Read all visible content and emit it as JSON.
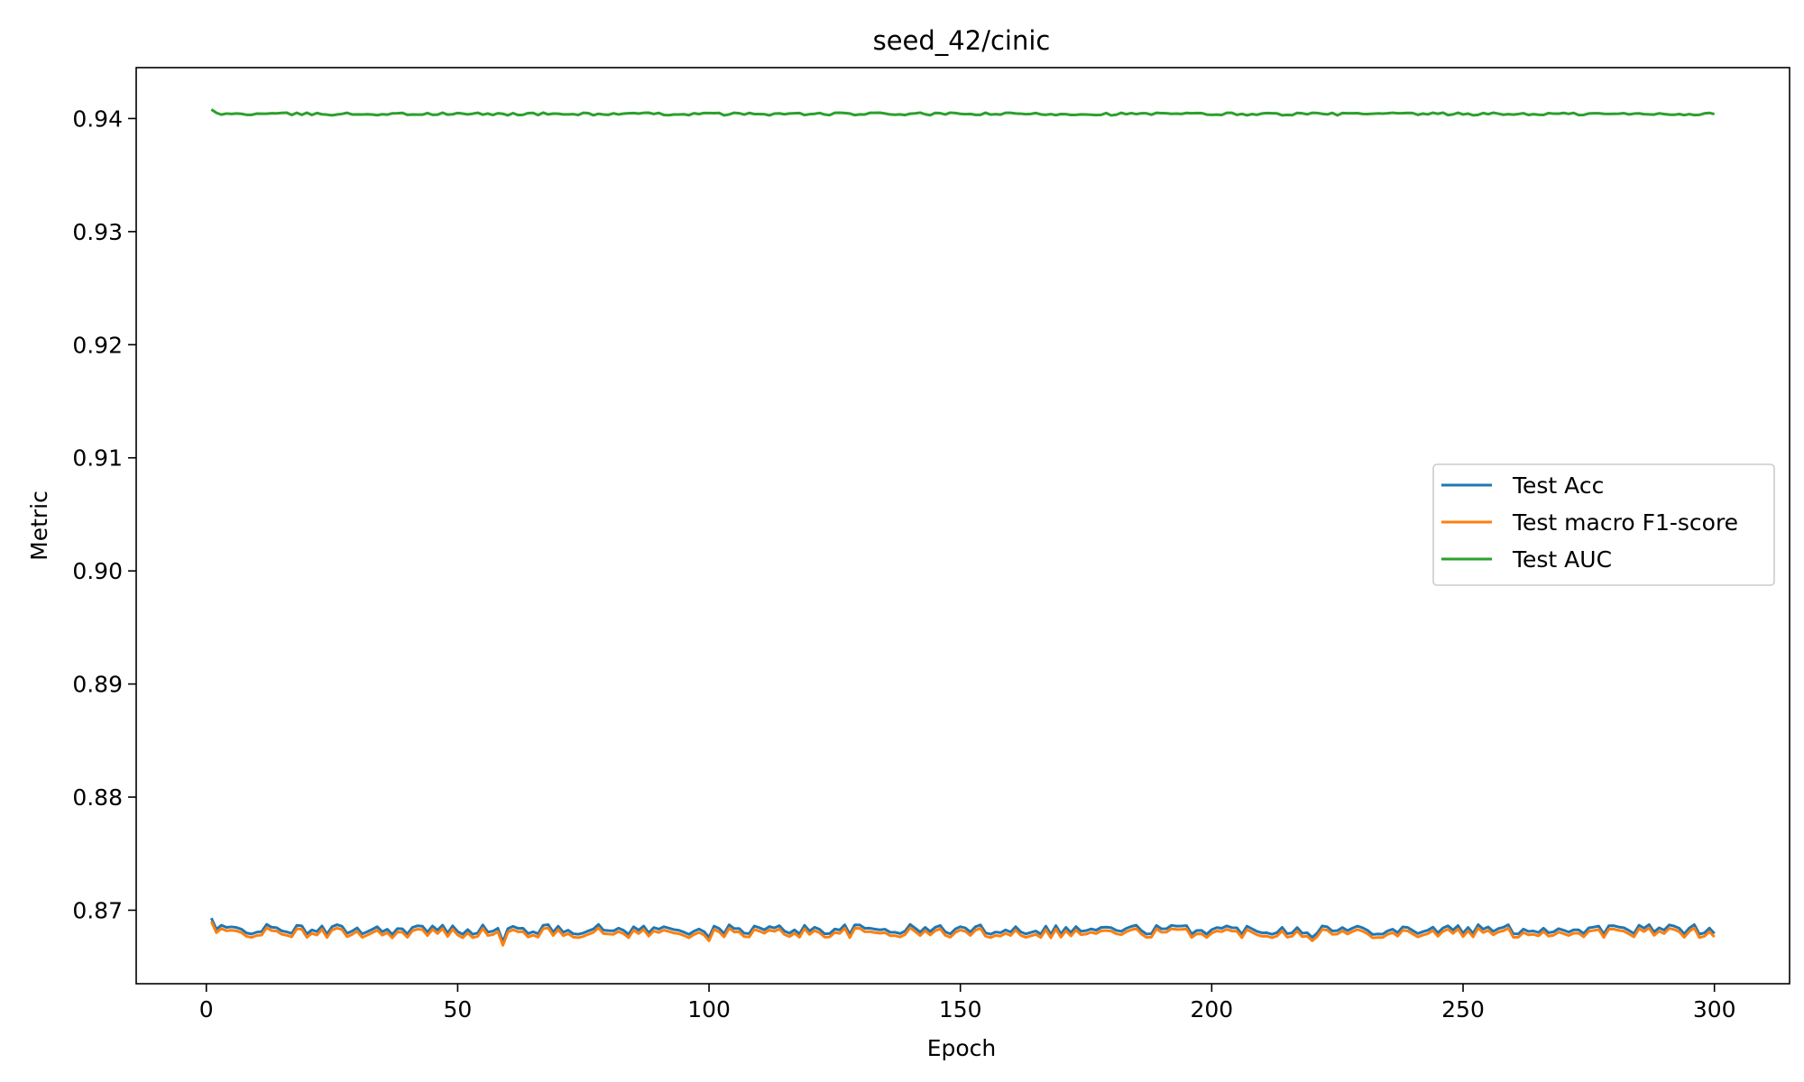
{
  "chart_data": {
    "type": "line",
    "title": "seed_42/cinic",
    "xlabel": "Epoch",
    "ylabel": "Metric",
    "xlim": [
      -13.95,
      314.95
    ],
    "ylim": [
      0.8635,
      0.9445
    ],
    "xticks": [
      0,
      50,
      100,
      150,
      200,
      250,
      300
    ],
    "yticks": [
      0.87,
      0.88,
      0.89,
      0.9,
      0.91,
      0.92,
      0.93,
      0.94
    ],
    "ytick_labels": [
      "0.87",
      "0.88",
      "0.89",
      "0.90",
      "0.91",
      "0.92",
      "0.93",
      "0.94"
    ],
    "grid": false,
    "legend_position": "center-right",
    "epochs": {
      "start": 1,
      "end": 300
    },
    "series": [
      {
        "name": "Test Acc",
        "color": "#1f77b4",
        "base": 0.8683,
        "first": 0.8693,
        "amp": 0.00045,
        "dips": [
          [
            20,
            0.8679
          ],
          [
            40,
            0.8679
          ],
          [
            59,
            0.8672
          ],
          [
            100,
            0.8676
          ],
          [
            220,
            0.8676
          ]
        ]
      },
      {
        "name": "Test macro F1-score",
        "color": "#ff7f0e",
        "base": 0.868,
        "first": 0.869,
        "amp": 0.00045,
        "dips": [
          [
            20,
            0.8676
          ],
          [
            40,
            0.8676
          ],
          [
            59,
            0.8669
          ],
          [
            100,
            0.8673
          ],
          [
            220,
            0.8673
          ]
        ]
      },
      {
        "name": "Test AUC",
        "color": "#2ca02c",
        "base": 0.9404,
        "first": 0.9408,
        "amp": 0.00012,
        "dips": []
      }
    ]
  }
}
